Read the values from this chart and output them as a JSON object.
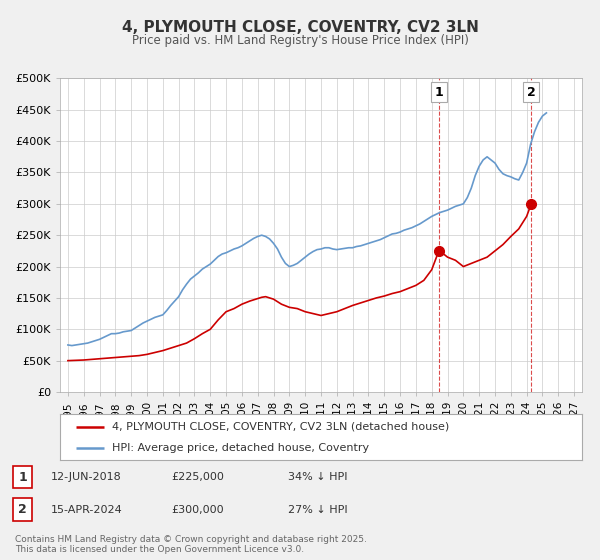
{
  "title": "4, PLYMOUTH CLOSE, COVENTRY, CV2 3LN",
  "subtitle": "Price paid vs. HM Land Registry's House Price Index (HPI)",
  "background_color": "#f0f0f0",
  "plot_bg_color": "#ffffff",
  "grid_color": "#cccccc",
  "xlim": [
    1994.5,
    2027.5
  ],
  "ylim": [
    0,
    500000
  ],
  "yticks": [
    0,
    50000,
    100000,
    150000,
    200000,
    250000,
    300000,
    350000,
    400000,
    450000,
    500000
  ],
  "ytick_labels": [
    "£0",
    "£50K",
    "£100K",
    "£150K",
    "£200K",
    "£250K",
    "£300K",
    "£350K",
    "£400K",
    "£450K",
    "£500K"
  ],
  "xticks": [
    1995,
    1996,
    1997,
    1998,
    1999,
    2000,
    2001,
    2002,
    2003,
    2004,
    2005,
    2006,
    2007,
    2008,
    2009,
    2010,
    2011,
    2012,
    2013,
    2014,
    2015,
    2016,
    2017,
    2018,
    2019,
    2020,
    2021,
    2022,
    2023,
    2024,
    2025,
    2026,
    2027
  ],
  "annotation1": {
    "x": 2018.45,
    "label": "1",
    "date": "12-JUN-2018",
    "price": "£225,000",
    "hpi": "34% ↓ HPI"
  },
  "annotation2": {
    "x": 2024.29,
    "label": "2",
    "date": "15-APR-2024",
    "price": "£300,000",
    "hpi": "27% ↓ HPI"
  },
  "legend_entry1": "4, PLYMOUTH CLOSE, COVENTRY, CV2 3LN (detached house)",
  "legend_entry2": "HPI: Average price, detached house, Coventry",
  "footnote": "Contains HM Land Registry data © Crown copyright and database right 2025.\nThis data is licensed under the Open Government Licence v3.0.",
  "red_line_color": "#cc0000",
  "blue_line_color": "#6699cc",
  "red_dot_color": "#cc0000",
  "hpi_x": [
    1995.0,
    1995.25,
    1995.5,
    1995.75,
    1996.0,
    1996.25,
    1996.5,
    1996.75,
    1997.0,
    1997.25,
    1997.5,
    1997.75,
    1998.0,
    1998.25,
    1998.5,
    1998.75,
    1999.0,
    1999.25,
    1999.5,
    1999.75,
    2000.0,
    2000.25,
    2000.5,
    2000.75,
    2001.0,
    2001.25,
    2001.5,
    2001.75,
    2002.0,
    2002.25,
    2002.5,
    2002.75,
    2003.0,
    2003.25,
    2003.5,
    2003.75,
    2004.0,
    2004.25,
    2004.5,
    2004.75,
    2005.0,
    2005.25,
    2005.5,
    2005.75,
    2006.0,
    2006.25,
    2006.5,
    2006.75,
    2007.0,
    2007.25,
    2007.5,
    2007.75,
    2008.0,
    2008.25,
    2008.5,
    2008.75,
    2009.0,
    2009.25,
    2009.5,
    2009.75,
    2010.0,
    2010.25,
    2010.5,
    2010.75,
    2011.0,
    2011.25,
    2011.5,
    2011.75,
    2012.0,
    2012.25,
    2012.5,
    2012.75,
    2013.0,
    2013.25,
    2013.5,
    2013.75,
    2014.0,
    2014.25,
    2014.5,
    2014.75,
    2015.0,
    2015.25,
    2015.5,
    2015.75,
    2016.0,
    2016.25,
    2016.5,
    2016.75,
    2017.0,
    2017.25,
    2017.5,
    2017.75,
    2018.0,
    2018.25,
    2018.5,
    2018.75,
    2019.0,
    2019.25,
    2019.5,
    2019.75,
    2020.0,
    2020.25,
    2020.5,
    2020.75,
    2021.0,
    2021.25,
    2021.5,
    2021.75,
    2022.0,
    2022.25,
    2022.5,
    2022.75,
    2023.0,
    2023.25,
    2023.5,
    2023.75,
    2024.0,
    2024.25,
    2024.5,
    2024.75,
    2025.0,
    2025.25
  ],
  "hpi_y": [
    75000,
    74000,
    75000,
    76000,
    77000,
    78000,
    80000,
    82000,
    84000,
    87000,
    90000,
    93000,
    93000,
    94000,
    96000,
    97000,
    98000,
    102000,
    106000,
    110000,
    113000,
    116000,
    119000,
    121000,
    123000,
    130000,
    138000,
    145000,
    152000,
    163000,
    172000,
    180000,
    185000,
    190000,
    196000,
    200000,
    204000,
    210000,
    216000,
    220000,
    222000,
    225000,
    228000,
    230000,
    233000,
    237000,
    241000,
    245000,
    248000,
    250000,
    248000,
    244000,
    237000,
    228000,
    215000,
    205000,
    200000,
    202000,
    205000,
    210000,
    215000,
    220000,
    224000,
    227000,
    228000,
    230000,
    230000,
    228000,
    227000,
    228000,
    229000,
    230000,
    230000,
    232000,
    233000,
    235000,
    237000,
    239000,
    241000,
    243000,
    246000,
    249000,
    252000,
    253000,
    255000,
    258000,
    260000,
    262000,
    265000,
    268000,
    272000,
    276000,
    280000,
    283000,
    286000,
    288000,
    290000,
    293000,
    296000,
    298000,
    300000,
    310000,
    325000,
    345000,
    360000,
    370000,
    375000,
    370000,
    365000,
    355000,
    348000,
    345000,
    343000,
    340000,
    338000,
    350000,
    365000,
    395000,
    415000,
    430000,
    440000,
    445000
  ],
  "price_x": [
    1995.0,
    1995.5,
    1996.0,
    1996.5,
    1997.0,
    1997.5,
    1998.0,
    1998.5,
    1999.0,
    1999.5,
    2000.0,
    2000.5,
    2001.0,
    2001.5,
    2002.0,
    2002.5,
    2003.0,
    2003.5,
    2004.0,
    2004.5,
    2005.0,
    2005.5,
    2006.0,
    2006.5,
    2007.0,
    2007.25,
    2007.5,
    2008.0,
    2008.5,
    2009.0,
    2009.5,
    2010.0,
    2010.5,
    2011.0,
    2011.5,
    2012.0,
    2012.5,
    2013.0,
    2013.5,
    2014.0,
    2014.5,
    2015.0,
    2015.5,
    2016.0,
    2016.5,
    2017.0,
    2017.5,
    2018.0,
    2018.45,
    2018.75,
    2019.0,
    2019.5,
    2020.0,
    2020.5,
    2021.0,
    2021.5,
    2022.0,
    2022.5,
    2023.0,
    2023.5,
    2024.0,
    2024.29
  ],
  "price_y": [
    50000,
    50500,
    51000,
    52000,
    53000,
    54000,
    55000,
    56000,
    57000,
    58000,
    60000,
    63000,
    66000,
    70000,
    74000,
    78000,
    85000,
    93000,
    100000,
    115000,
    128000,
    133000,
    140000,
    145000,
    149000,
    151000,
    152000,
    148000,
    140000,
    135000,
    133000,
    128000,
    125000,
    122000,
    125000,
    128000,
    133000,
    138000,
    142000,
    146000,
    150000,
    153000,
    157000,
    160000,
    165000,
    170000,
    178000,
    195000,
    225000,
    220000,
    215000,
    210000,
    200000,
    205000,
    210000,
    215000,
    225000,
    235000,
    248000,
    260000,
    280000,
    300000
  ],
  "sale_points_x": [
    2018.45,
    2024.29
  ],
  "sale_points_y": [
    225000,
    300000
  ]
}
